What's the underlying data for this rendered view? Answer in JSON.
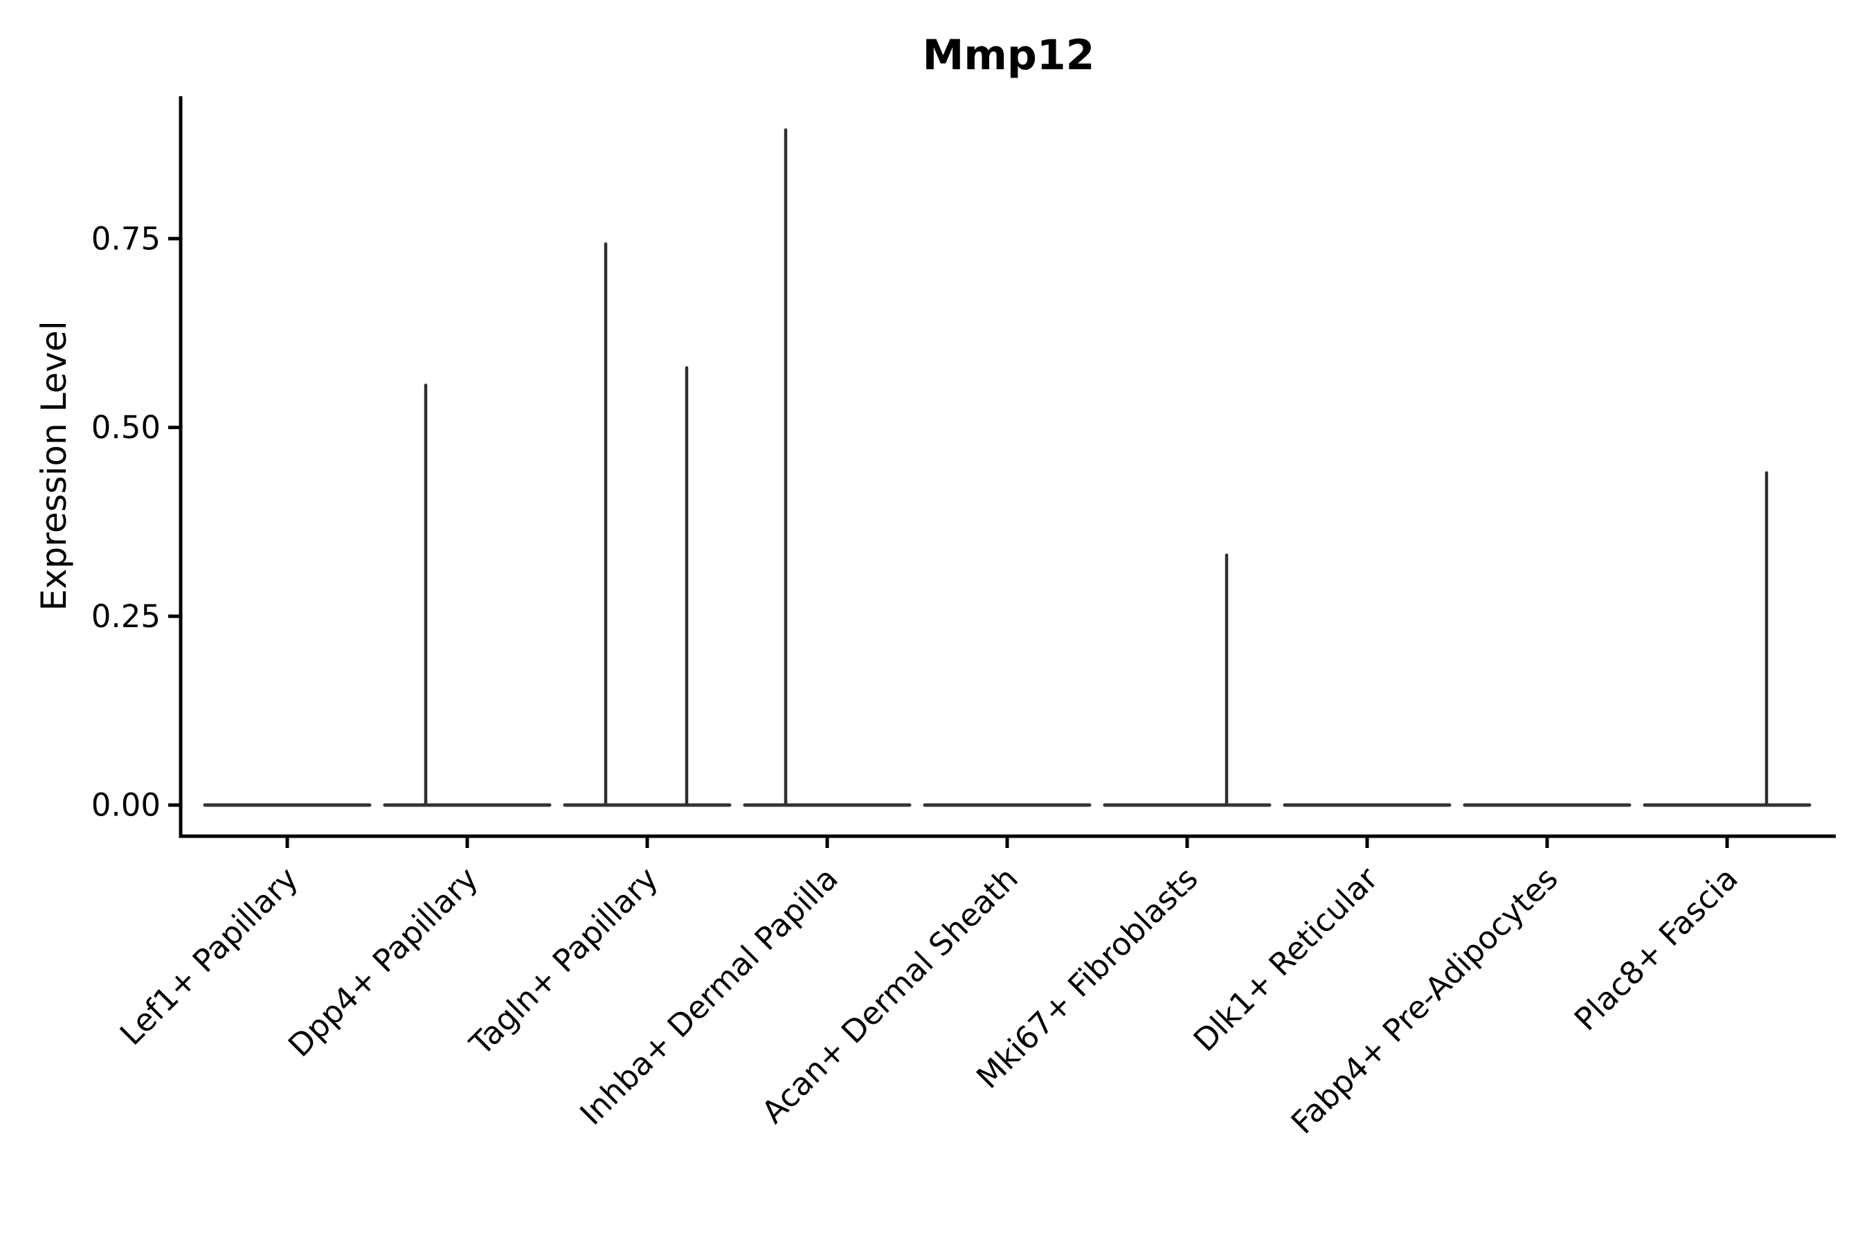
{
  "chart_data": {
    "type": "violin",
    "title": "Mmp12",
    "xlabel": "",
    "ylabel": "Expression Level",
    "legend_position": "none",
    "grid": false,
    "background": "#ffffff",
    "axis_color": "#000000",
    "violin_color": "#333333",
    "ylim": [
      -0.045,
      0.939
    ],
    "ytick_values": [
      0.0,
      0.25,
      0.5,
      0.75
    ],
    "ytick_labels": [
      "0.00",
      "0.25",
      "0.50",
      "0.75"
    ],
    "categories": [
      "Lef1+ Papillary",
      "Dpp4+ Papillary",
      "Tagln+ Papillary",
      "Inhba+ Dermal Papilla",
      "Acan+ Dermal Sheath",
      "Mki67+ Fibroblasts",
      "Dlk1+ Reticular",
      "Fabp4+ Pre-Adipocytes",
      "Plac8+ Fascia"
    ],
    "violins": [
      {
        "category": "Lef1+ Papillary",
        "bulk_value": 0.0,
        "spikes": []
      },
      {
        "category": "Dpp4+ Papillary",
        "bulk_value": 0.0,
        "spikes": [
          {
            "position": "left",
            "max_expression": 0.556
          }
        ]
      },
      {
        "category": "Tagln+ Papillary",
        "bulk_value": 0.0,
        "spikes": [
          {
            "position": "left",
            "max_expression": 0.743
          },
          {
            "position": "right",
            "max_expression": 0.579
          }
        ]
      },
      {
        "category": "Inhba+ Dermal Papilla",
        "bulk_value": 0.0,
        "spikes": [
          {
            "position": "left",
            "max_expression": 0.894
          }
        ]
      },
      {
        "category": "Acan+ Dermal Sheath",
        "bulk_value": 0.0,
        "spikes": []
      },
      {
        "category": "Mki67+ Fibroblasts",
        "bulk_value": 0.0,
        "spikes": [
          {
            "position": "right",
            "max_expression": 0.331
          }
        ]
      },
      {
        "category": "Dlk1+ Reticular",
        "bulk_value": 0.0,
        "spikes": []
      },
      {
        "category": "Fabp4+ Pre-Adipocytes",
        "bulk_value": 0.0,
        "spikes": []
      },
      {
        "category": "Plac8+ Fascia",
        "bulk_value": 0.0,
        "spikes": [
          {
            "position": "right",
            "max_expression": 0.44
          }
        ]
      }
    ]
  }
}
